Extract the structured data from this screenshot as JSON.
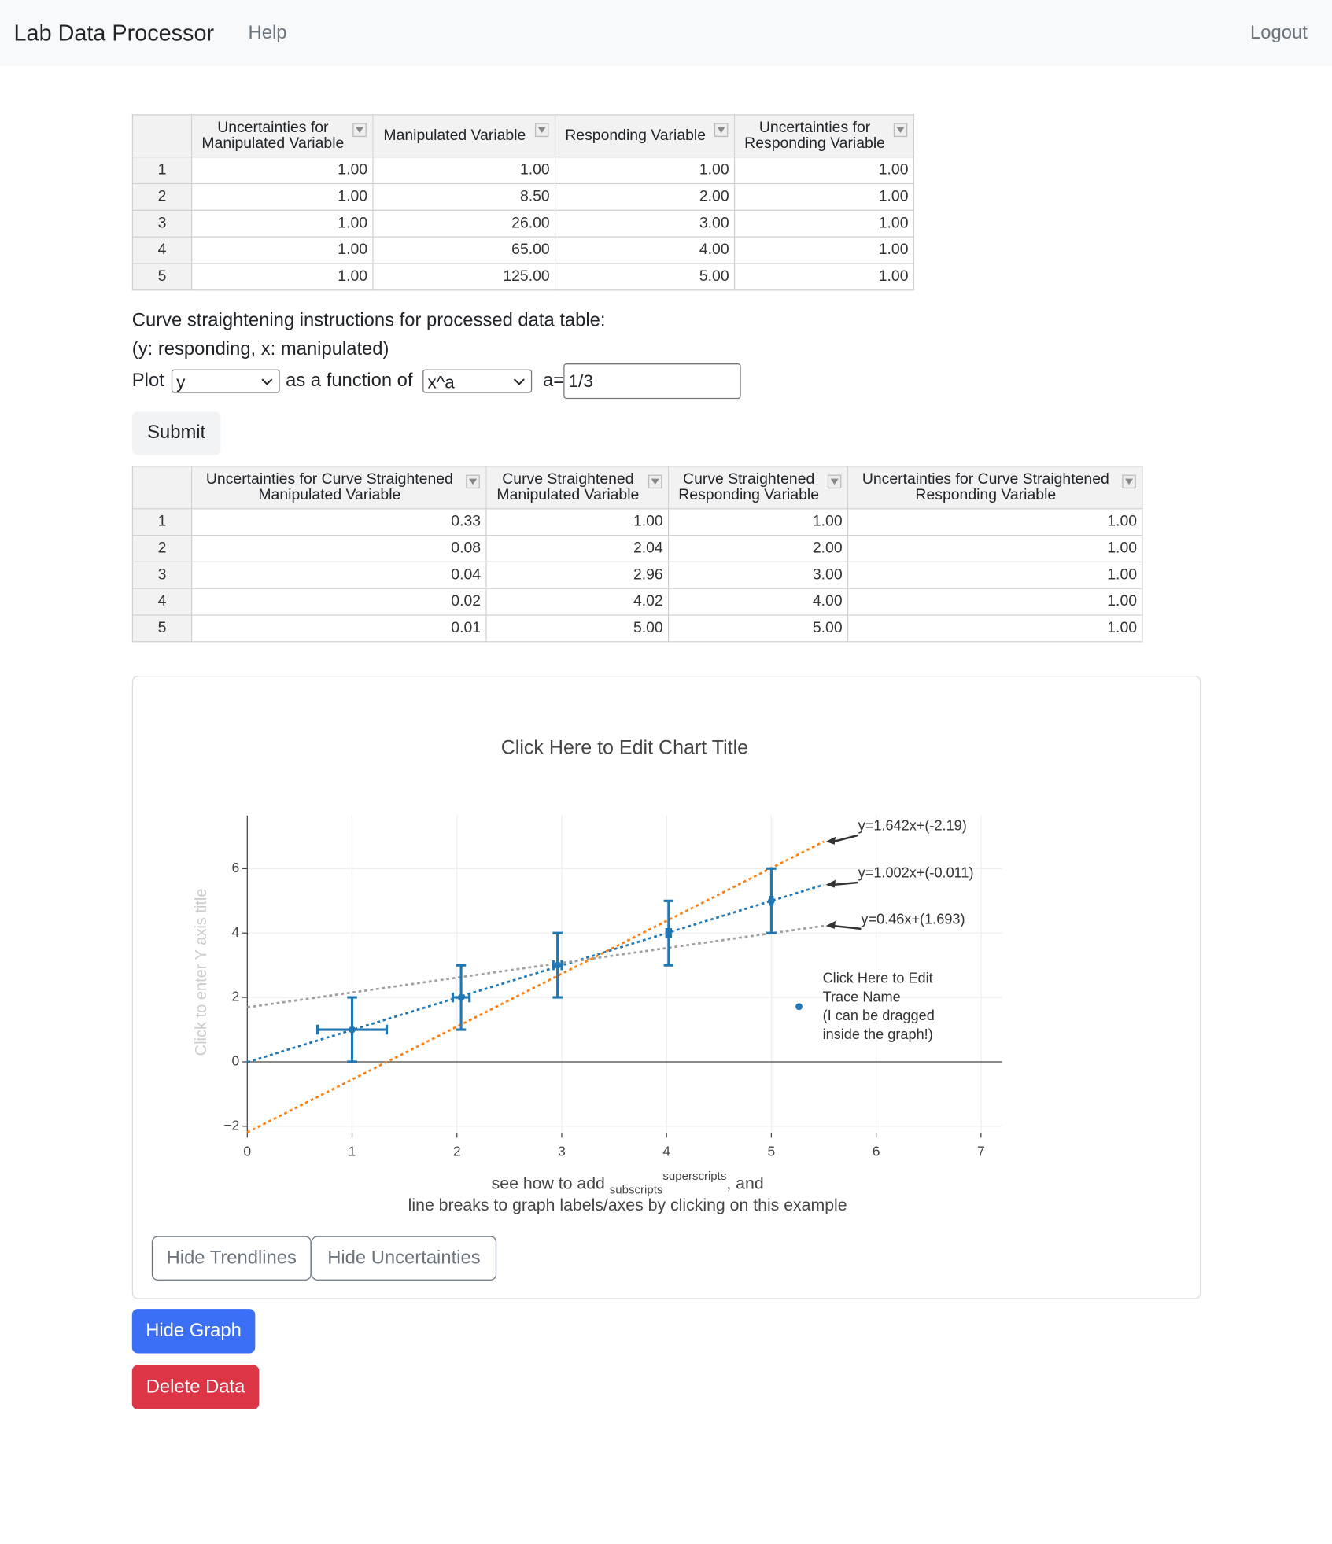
{
  "navbar": {
    "brand": "Lab Data Processor",
    "help": "Help",
    "logout": "Logout"
  },
  "table1": {
    "headers": [
      "Uncertainties for Manipulated Variable",
      "Manipulated Variable",
      "Responding Variable",
      "Uncertainties for Responding Variable"
    ],
    "row_labels": [
      "1",
      "2",
      "3",
      "4",
      "5"
    ],
    "rows": [
      [
        "1.00",
        "1.00",
        "1.00",
        "1.00"
      ],
      [
        "1.00",
        "8.50",
        "2.00",
        "1.00"
      ],
      [
        "1.00",
        "26.00",
        "3.00",
        "1.00"
      ],
      [
        "1.00",
        "65.00",
        "4.00",
        "1.00"
      ],
      [
        "1.00",
        "125.00",
        "5.00",
        "1.00"
      ]
    ]
  },
  "instructions": {
    "line1": "Curve straightening instructions for processed data table:",
    "line2": "(y: responding, x: manipulated)"
  },
  "form": {
    "plot_label": "Plot",
    "y_select": "y",
    "function_label": "as a function of",
    "x_select": "x^a",
    "a_label": "a=",
    "a_value": "1/3",
    "submit": "Submit"
  },
  "table2": {
    "headers": [
      "Uncertainties for Curve Straightened Manipulated Variable",
      "Curve Straightened Manipulated Variable",
      "Curve Straightened Responding Variable",
      "Uncertainties for Curve Straightened Responding Variable"
    ],
    "row_labels": [
      "1",
      "2",
      "3",
      "4",
      "5"
    ],
    "rows": [
      [
        "0.33",
        "1.00",
        "1.00",
        "1.00"
      ],
      [
        "0.08",
        "2.04",
        "2.00",
        "1.00"
      ],
      [
        "0.04",
        "2.96",
        "3.00",
        "1.00"
      ],
      [
        "0.02",
        "4.02",
        "4.00",
        "1.00"
      ],
      [
        "0.01",
        "5.00",
        "5.00",
        "1.00"
      ]
    ]
  },
  "chart_data": {
    "type": "scatter",
    "title": "Click Here to Edit Chart Title",
    "y_label": "Click to enter Y axis title",
    "x_label_parts": [
      "see how to add",
      "subscripts",
      "superscripts",
      ", and"
    ],
    "x_label_line2": "line breaks to graph labels/axes by clicking on this example",
    "x": [
      1.0,
      2.04,
      2.96,
      4.02,
      5.0
    ],
    "x_errors": [
      0.33,
      0.08,
      0.04,
      0.02,
      0.01
    ],
    "series": [
      {
        "legend_lines": [
          "Click Here to Edit",
          "Trace Name",
          "(I can be dragged",
          "inside the graph!)"
        ],
        "color": "#1f77b4",
        "values": [
          1,
          2,
          3,
          4,
          5
        ],
        "y_errors": [
          1,
          1,
          1,
          1,
          1
        ]
      }
    ],
    "trendlines": [
      {
        "label": "y=1.642x+(-2.19)",
        "color": "#ff7f0e",
        "x": [
          0,
          5.5
        ],
        "y": [
          -2.19,
          6.84
        ]
      },
      {
        "label": "y=1.002x+(-0.011)",
        "color": "#1f77b4",
        "x": [
          0,
          5.5
        ],
        "y": [
          -0.011,
          5.5
        ]
      },
      {
        "label": "y=0.46x+(1.693)",
        "color": "#a0a0a0",
        "x": [
          0,
          5.5
        ],
        "y": [
          1.693,
          4.223
        ]
      }
    ],
    "xlim": [
      0,
      7.2
    ],
    "ylim": [
      -2.2,
      7.65
    ],
    "xticks": [
      0,
      1,
      2,
      3,
      4,
      5,
      6,
      7
    ],
    "yticks": [
      {
        "value": -2,
        "label": "−2"
      },
      0,
      2,
      4,
      6
    ],
    "grid": true
  },
  "buttons": {
    "hide_trendlines": "Hide Trendlines",
    "hide_uncertainties": "Hide Uncertainties",
    "hide_graph": "Hide Graph",
    "delete_data": "Delete Data"
  }
}
